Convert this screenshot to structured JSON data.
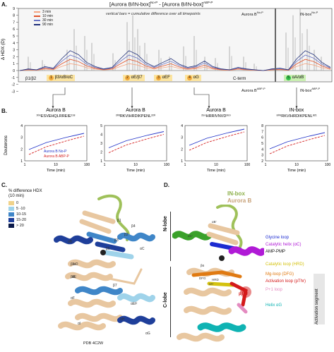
{
  "panel_labels": {
    "a": "A.",
    "b": "B.",
    "c": "C.",
    "d": "D."
  },
  "panel_a": {
    "title": "[Aurora B/IN-box]",
    "title_sup1": "No-P",
    "title_minus": " - [Aurora B/IN-box]",
    "title_sup2": "ABP-P",
    "subtitle": "vertical bars = cumulative difference over all timepoints",
    "ylabel": "Δ HDX (D)",
    "legend": [
      {
        "label": "3 min",
        "color": "#f4a582"
      },
      {
        "label": "10 min",
        "color": "#e0532b"
      },
      {
        "label": "30 min",
        "color": "#6a74c4"
      },
      {
        "label": "90 min",
        "color": "#1f2f7a"
      }
    ],
    "region_labels": {
      "aurora": "Aurora B",
      "aurora_sup": "No-P",
      "inbox": "IN-box",
      "inbox_sup": "No-P",
      "aurora_bottom": "Aurora B",
      "aurora_bottom_sup": "ABP-P",
      "inbox_bottom": "IN-box",
      "inbox_bottom_sup": "ABP-P"
    },
    "elements": [
      {
        "label": "β1/β2",
        "badge": "",
        "color": ""
      },
      {
        "label": "β3/αB/αC",
        "badge": "1",
        "color": "#f2a93b"
      },
      {
        "label": "αE/β7",
        "badge": "2",
        "color": "#f2a93b"
      },
      {
        "label": "αEF",
        "badge": "3",
        "color": "#f2a93b"
      },
      {
        "label": "αG",
        "badge": "4",
        "color": "#f2a93b"
      },
      {
        "label": "C-term",
        "badge": "",
        "color": ""
      },
      {
        "label": "αA/αB",
        "badge": "5",
        "color": "#35c24a"
      }
    ]
  },
  "panel_b": {
    "ylabel": "Deuterons",
    "xlabel": "Time (min)",
    "plots": [
      {
        "title": "Aurora B",
        "peptide": "¹⁰⁶ESVEHQLRREIE¹¹⁸",
        "yticks": [
          "4",
          "3",
          "2",
          "1"
        ]
      },
      {
        "title": "Aurora B",
        "peptide": "²⁰³RKVIHRDIKPENL²²⁰",
        "yticks": [
          "5",
          "4",
          "3",
          "2",
          "1"
        ]
      },
      {
        "title": "Aurora B",
        "peptide": "²⁵⁶HRRIVNVD²⁶⁹",
        "yticks": [
          "4",
          "3",
          "2",
          "1"
        ]
      },
      {
        "title": "IN-box",
        "peptide": "⁸⁰⁹RKVIHRDIKPENL⁸²¹",
        "yticks": [
          "8",
          "7",
          "6",
          "5",
          "4",
          "3",
          "2"
        ]
      }
    ],
    "legend1": "Aurora B",
    "legend1_sup": "No-P",
    "legend2": "Aurora B",
    "legend2_sup": "ABP-P",
    "xticks": [
      "1",
      "10",
      "100"
    ]
  },
  "panel_c": {
    "legend_title": "% difference HDX",
    "legend_sub": "(10 min)",
    "bins": [
      {
        "label": "0",
        "color": "#f0d28a"
      },
      {
        "label": "5 -10",
        "color": "#9fd3ea"
      },
      {
        "label": "10-15",
        "color": "#3f86c8"
      },
      {
        "label": "15-20",
        "color": "#1f3f9a"
      },
      {
        "label": "> 20",
        "color": "#0a1a4a"
      }
    ],
    "pdb": "PDB 4C2W",
    "labels": [
      "β1",
      "β2",
      "β3",
      "β4",
      "αB",
      "αC",
      "β5",
      "β6",
      "β7",
      "β8",
      "αD",
      "αE",
      "αEF",
      "αF",
      "αG",
      "αH",
      "αI"
    ]
  },
  "panel_d": {
    "inbox_title": "IN-box",
    "aurora_title": "Aurora B",
    "n_lobe": "N-lobe",
    "c_lobe": "C-lobe",
    "activation_segment": "Activation segment",
    "annotations": [
      {
        "label": "Glycine loop",
        "color": "#1c2bd1"
      },
      {
        "label": "Catalytic helix (αC)",
        "color": "#b01ad6"
      },
      {
        "label": "AMP-PMP",
        "color": "#111111"
      },
      {
        "label": "Catalytic loop (HRD)",
        "color": "#d4c20f"
      },
      {
        "label": "Mg-loop (DFG)",
        "color": "#e07a12"
      },
      {
        "label": "Activation loop (pThr)",
        "color": "#d41a1a"
      },
      {
        "label": "P+1 loop",
        "color": "#e48bc0"
      },
      {
        "label": "Helix αG",
        "color": "#0fb3b3"
      }
    ],
    "pthr": "pThr",
    "small_labels": [
      "αB'",
      "αC'",
      "β6",
      "αA'",
      "HRD",
      "DFG"
    ]
  }
}
